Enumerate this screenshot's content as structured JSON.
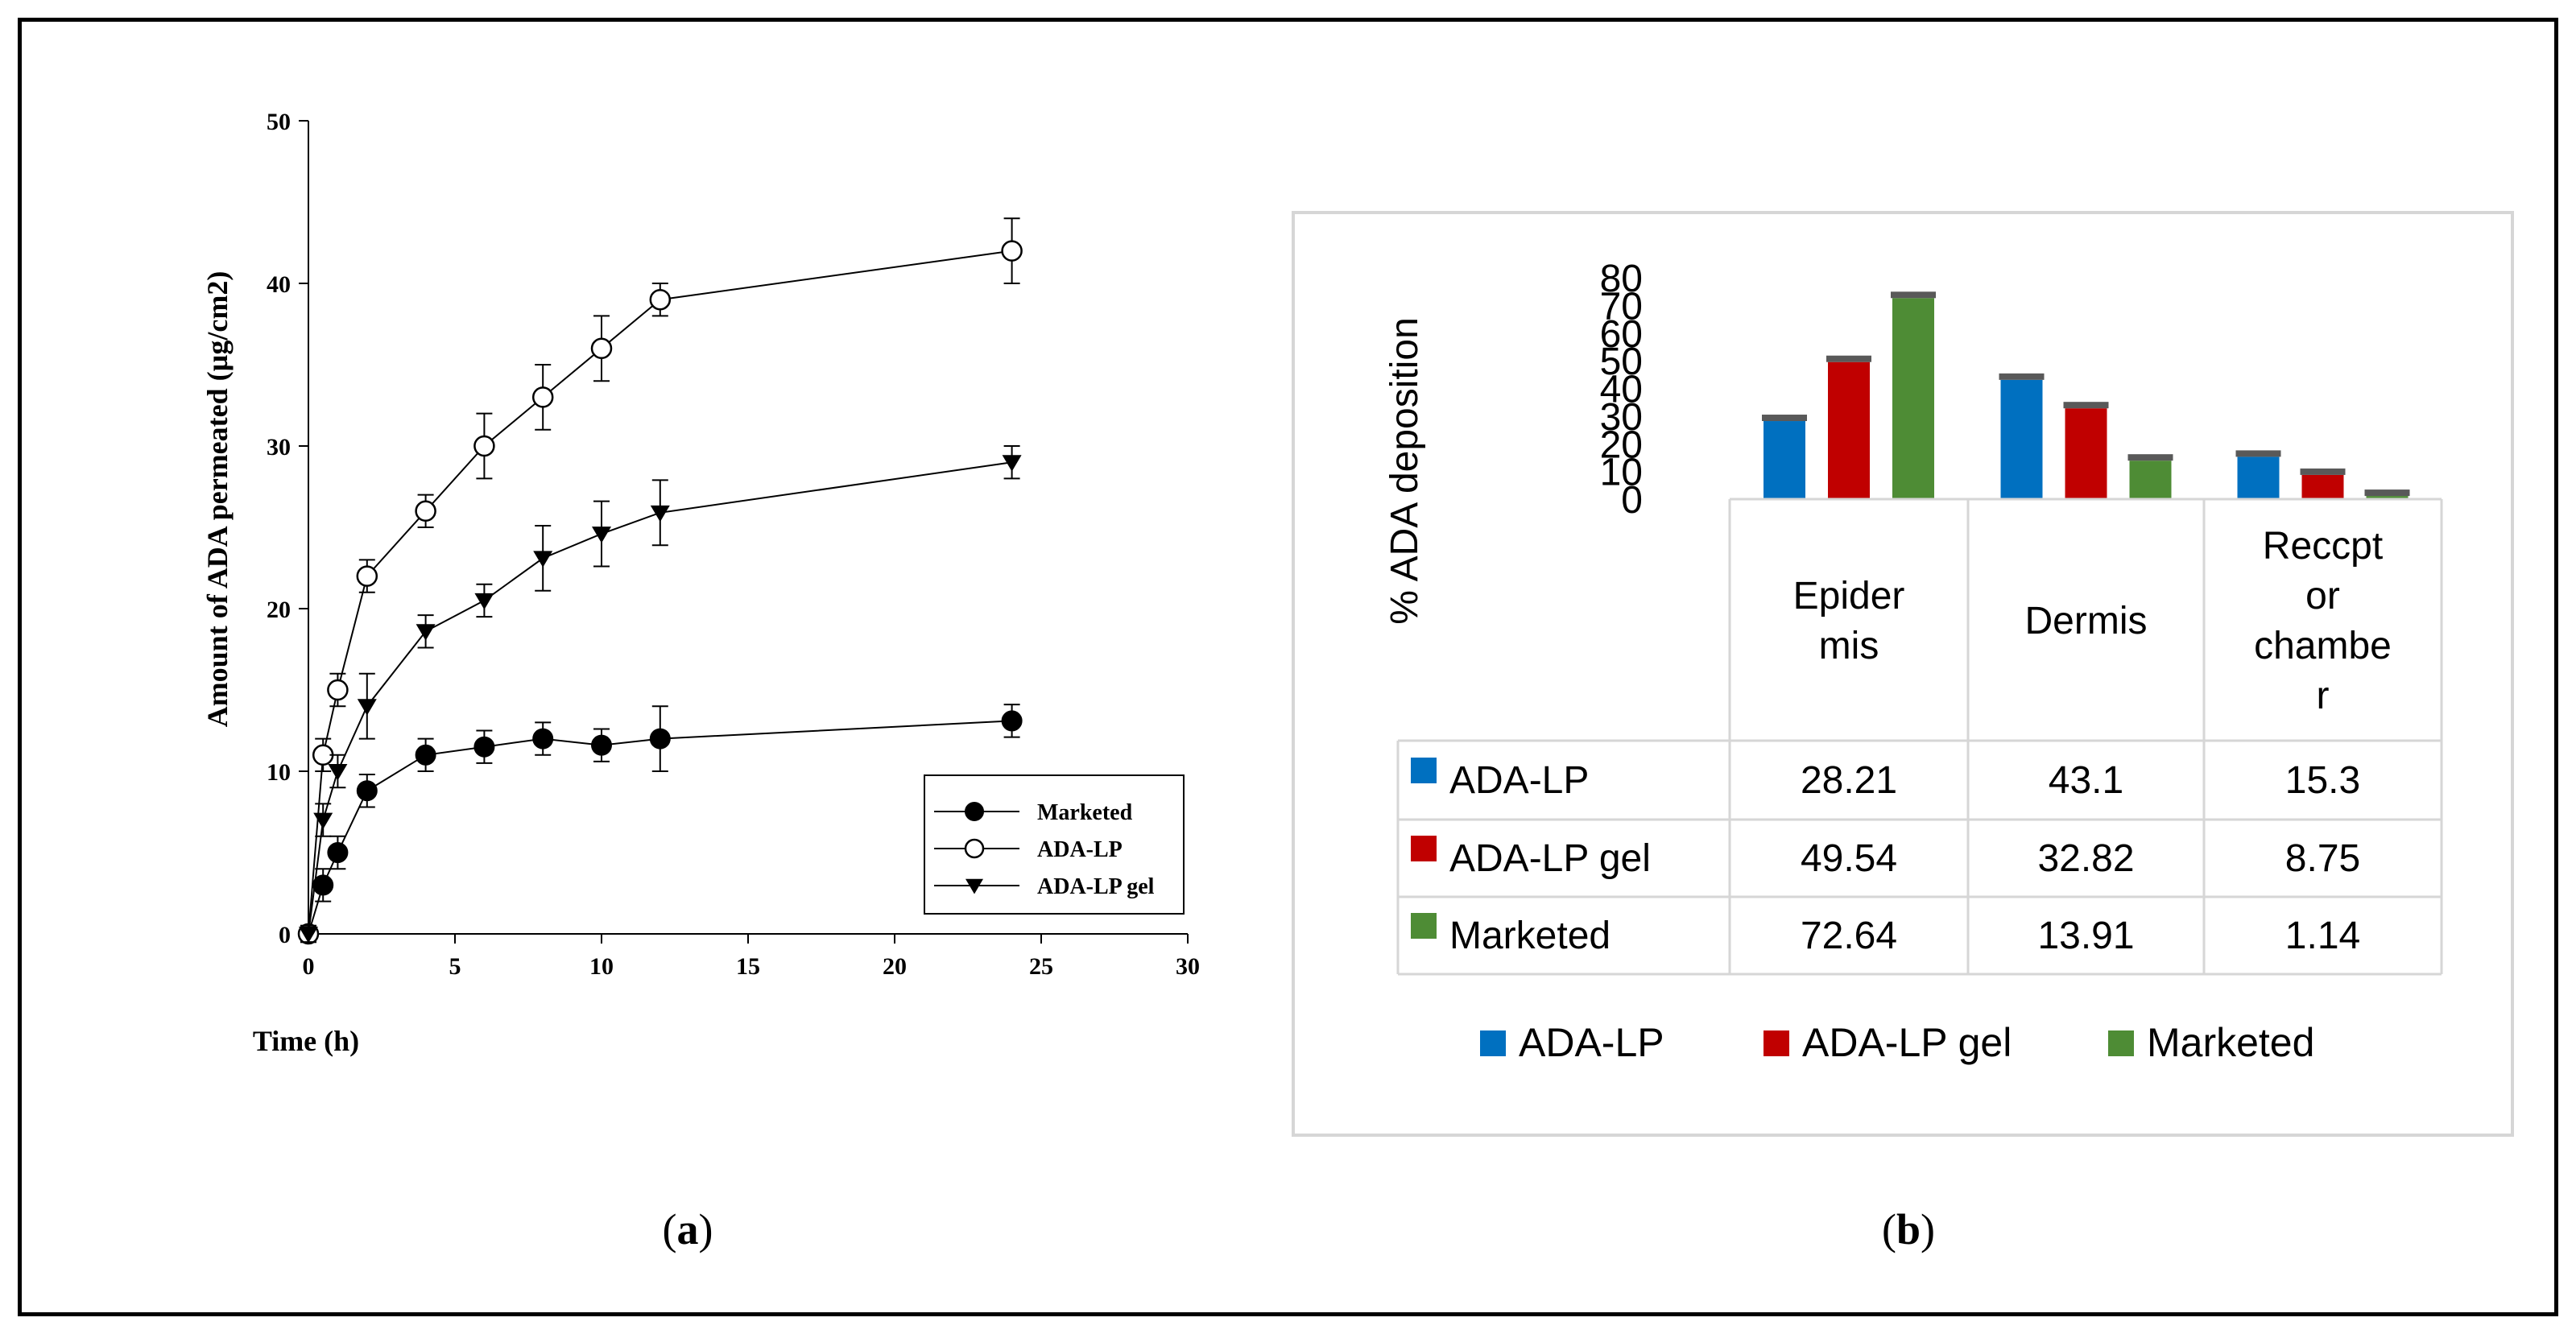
{
  "panel_a": {
    "caption_open": "(",
    "caption_letter": "a",
    "caption_close": ")"
  },
  "panel_b": {
    "caption_open": "(",
    "caption_letter": "b",
    "caption_close": ")"
  },
  "colors": {
    "ada_lp": "#0070C0",
    "ada_lp_gel": "#C00000",
    "marketed": "#4E8C35"
  },
  "chart_data": [
    {
      "type": "line",
      "title": "",
      "xlabel": "Time (h)",
      "ylabel": "Amount of ADA permeated (µg/cm2)",
      "xlim": [
        0,
        30
      ],
      "ylim": [
        0,
        50
      ],
      "xticks": [
        "0",
        "5",
        "10",
        "15",
        "20",
        "25",
        "30"
      ],
      "yticks": [
        "0",
        "10",
        "20",
        "30",
        "40",
        "50"
      ],
      "legend_position": "bottom-right",
      "x": [
        0,
        0.5,
        1,
        2,
        4,
        6,
        8,
        10,
        12,
        24
      ],
      "series": [
        {
          "name": "Marketed",
          "marker": "filled-circle",
          "values": [
            0,
            3,
            5,
            8.8,
            11,
            11.5,
            12,
            11.6,
            12,
            13.1
          ],
          "errors": [
            0.5,
            1,
            1,
            1,
            1,
            1,
            1,
            1,
            2,
            1
          ]
        },
        {
          "name": "ADA-LP",
          "marker": "open-circle",
          "values": [
            0,
            11,
            15,
            22,
            26,
            30,
            33,
            36,
            39,
            42
          ],
          "errors": [
            0.5,
            1,
            1,
            1,
            1,
            2,
            2,
            2,
            1,
            2
          ]
        },
        {
          "name": "ADA-LP gel",
          "marker": "filled-triangle-down",
          "values": [
            0,
            7,
            10,
            14,
            18.6,
            20.5,
            23.1,
            24.6,
            25.9,
            29
          ],
          "errors": [
            0.5,
            1,
            1,
            2,
            1,
            1,
            2,
            2,
            2,
            1
          ]
        }
      ]
    },
    {
      "type": "bar",
      "title": "",
      "ylabel": "% ADA deposition",
      "ylim": [
        0,
        80
      ],
      "yticks": [
        "0",
        "10",
        "20",
        "30",
        "40",
        "50",
        "60",
        "70",
        "80"
      ],
      "categories": [
        "Epider mis",
        "Dermis",
        "Reccpt or chambe r"
      ],
      "category_lines": [
        [
          "Epider",
          "mis"
        ],
        [
          "Dermis"
        ],
        [
          "Reccpt",
          "or",
          "chambe",
          "r"
        ]
      ],
      "legend_position": "bottom",
      "series": [
        {
          "name": "ADA-LP",
          "values": [
            28.21,
            43.1,
            15.3
          ],
          "labels": [
            "28.21",
            "43.1",
            "15.3"
          ]
        },
        {
          "name": "ADA-LP gel",
          "values": [
            49.54,
            32.82,
            8.75
          ],
          "labels": [
            "49.54",
            "32.82",
            "8.75"
          ]
        },
        {
          "name": "Marketed",
          "values": [
            72.64,
            13.91,
            1.14
          ],
          "labels": [
            "72.64",
            "13.91",
            "1.14"
          ]
        }
      ]
    }
  ]
}
